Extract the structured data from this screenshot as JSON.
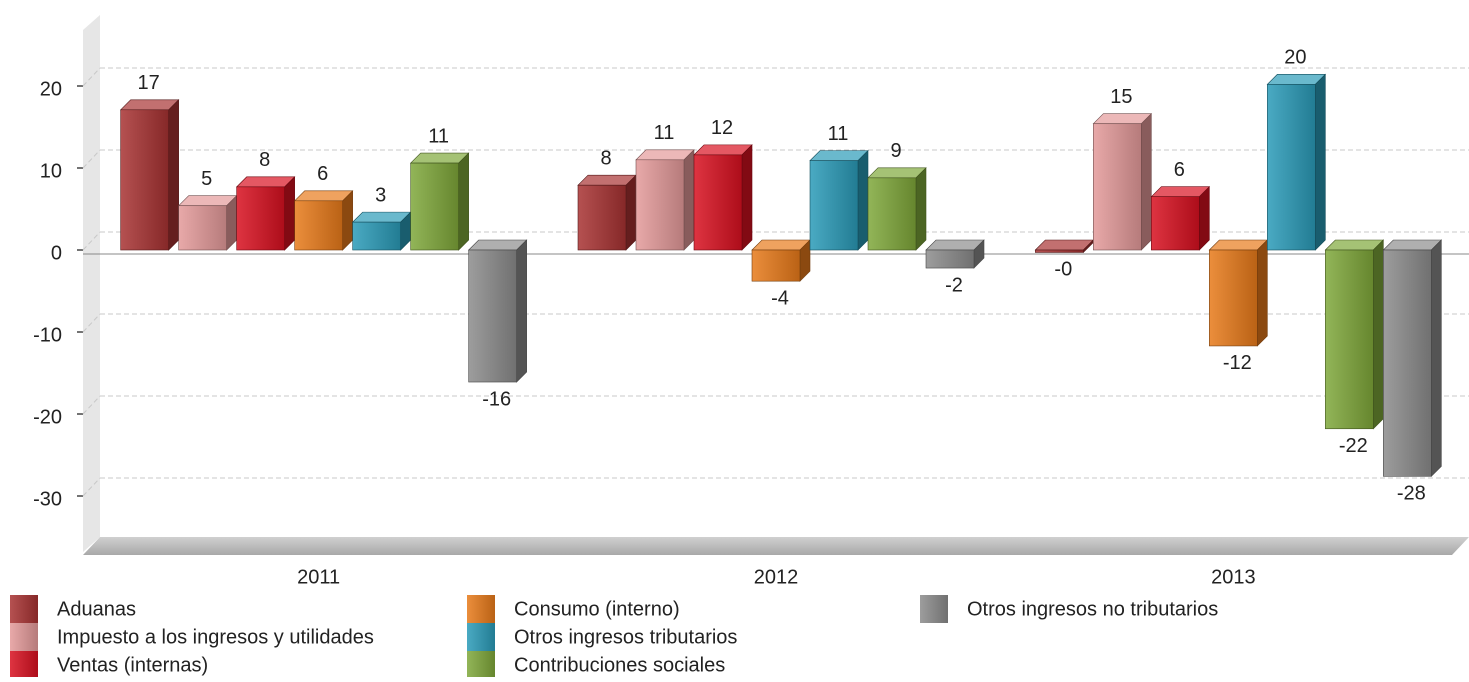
{
  "chart_data": {
    "type": "bar3d",
    "categories": [
      "2011",
      "2012",
      "2013"
    ],
    "series": [
      {
        "name": "Aduanas",
        "color": "#a83232",
        "values": [
          17.1,
          7.9,
          -0.3
        ],
        "value_labels": [
          "17",
          "8",
          "-0"
        ]
      },
      {
        "name": "Impuesto a los ingresos y utilidades",
        "color": "#e49a9a",
        "values": [
          5.4,
          11.0,
          15.4
        ],
        "value_labels": [
          "5",
          "11",
          "15"
        ]
      },
      {
        "name": "Ventas (internas)",
        "color": "#d81020",
        "values": [
          7.7,
          11.6,
          6.5
        ],
        "value_labels": [
          "8",
          "12",
          "6"
        ]
      },
      {
        "name": "Consumo (interno)",
        "color": "#e87a1a",
        "values": [
          6.0,
          -3.8,
          -11.7
        ],
        "value_labels": [
          "6",
          "-4",
          "-12"
        ]
      },
      {
        "name": "Otros ingresos tributarios",
        "color": "#2a9bb8",
        "values": [
          3.4,
          10.9,
          20.2
        ],
        "value_labels": [
          "3",
          "11",
          "20"
        ]
      },
      {
        "name": "Contribuciones sociales",
        "color": "#7fa83a",
        "values": [
          10.6,
          8.8,
          -21.8
        ],
        "value_labels": [
          "11",
          "9",
          "-22"
        ]
      },
      {
        "name": "Otros ingresos no tributarios",
        "color": "#8c8c8c",
        "values": [
          -16.1,
          -2.2,
          -27.6
        ],
        "value_labels": [
          "-16",
          "-2",
          "-28"
        ]
      }
    ],
    "ylim": [
      -36,
      27
    ],
    "yticks": [
      -30,
      -20,
      -10,
      0,
      10,
      20
    ],
    "grid": true
  }
}
